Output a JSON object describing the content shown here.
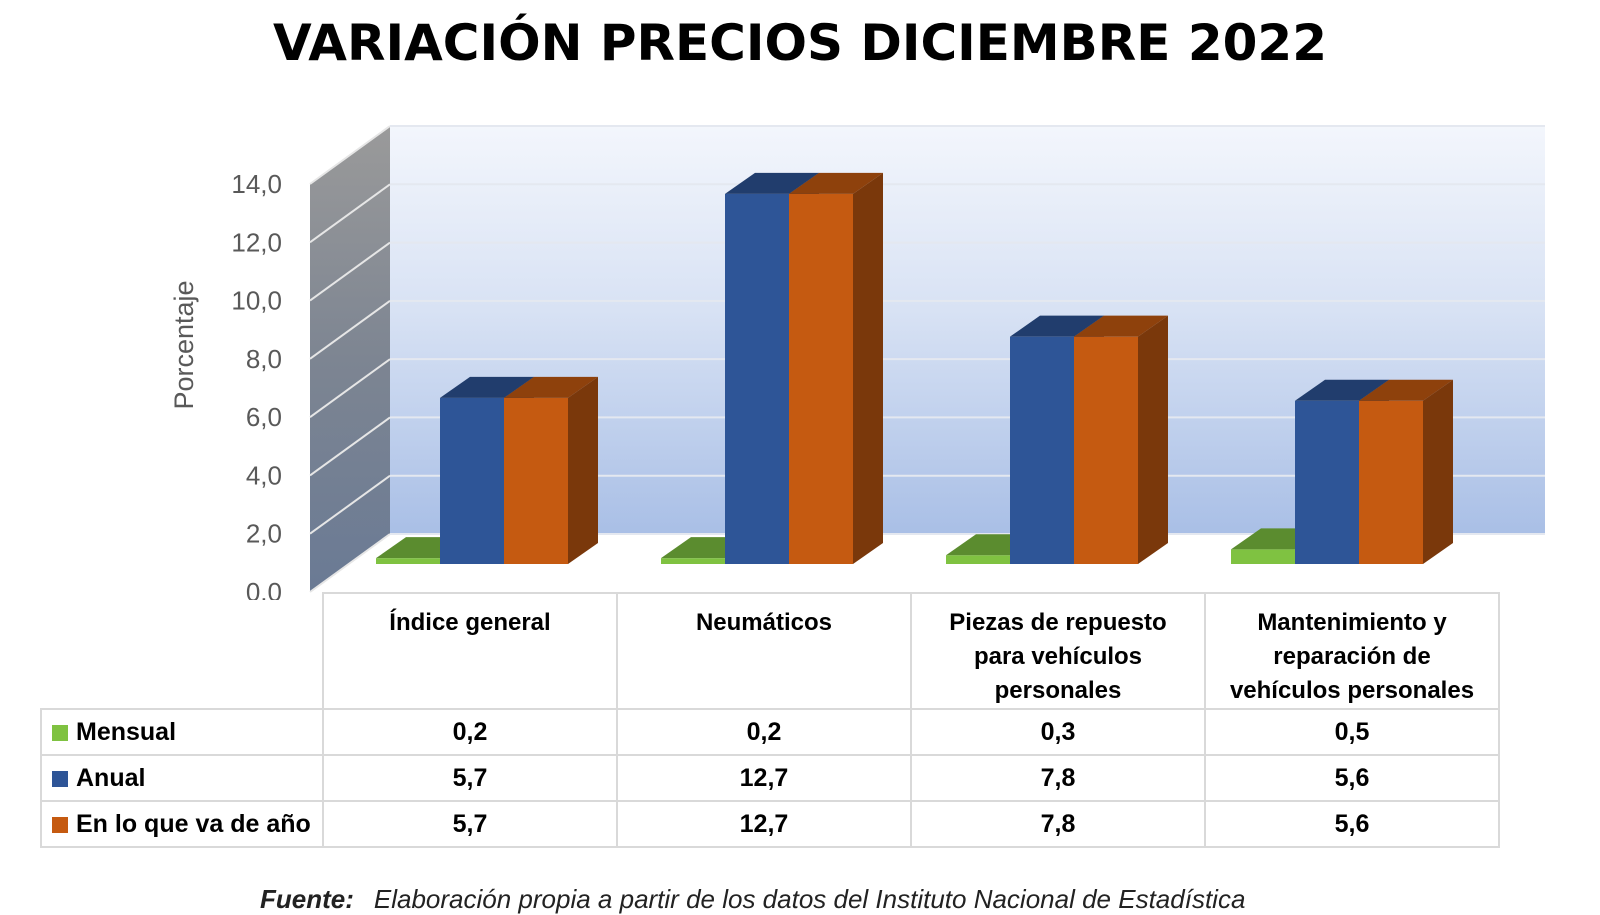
{
  "colors": {
    "mensual": "#7fc241",
    "anual": "#2e5597",
    "acumulado": "#c55a11"
  },
  "chart_data": {
    "type": "bar",
    "title": "VARIACIÓN PRECIOS DICIEMBRE 2022",
    "ylabel": "Porcentaje",
    "ylim": [
      0,
      14
    ],
    "yticks": [
      "0,0",
      "2,0",
      "4,0",
      "6,0",
      "8,0",
      "10,0",
      "12,0",
      "14,0"
    ],
    "grid": true,
    "categories": [
      "Índice general",
      "Neumáticos",
      "Piezas de repuesto para vehículos personales",
      "Mantenimiento y reparación de vehículos personales"
    ],
    "category_lines": [
      [
        "Índice general"
      ],
      [
        "Neumáticos"
      ],
      [
        "Piezas de repuesto",
        "para vehículos",
        "personales"
      ],
      [
        "Mantenimiento y",
        "reparación de",
        "vehículos personales"
      ]
    ],
    "series": [
      {
        "name": "Mensual",
        "values": [
          0.2,
          0.2,
          0.3,
          0.5
        ],
        "labels": [
          "0,2",
          "0,2",
          "0,3",
          "0,5"
        ]
      },
      {
        "name": "Anual",
        "values": [
          5.7,
          12.7,
          7.8,
          5.6
        ],
        "labels": [
          "5,7",
          "12,7",
          "7,8",
          "5,6"
        ]
      },
      {
        "name": "En lo que va de año",
        "values": [
          5.7,
          12.7,
          7.8,
          5.6
        ],
        "labels": [
          "5,7",
          "12,7",
          "7,8",
          "5,6"
        ]
      }
    ]
  },
  "source": {
    "label": "Fuente:",
    "text": "Elaboración propia a partir de los datos del Instituto Nacional de Estadística"
  }
}
